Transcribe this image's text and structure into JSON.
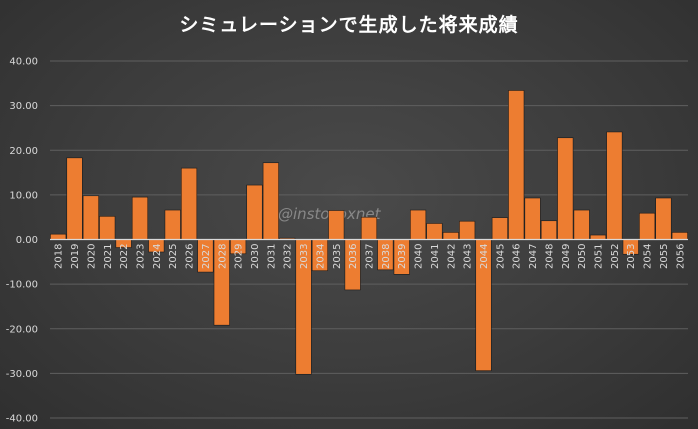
{
  "chart_data": {
    "type": "bar",
    "title": "シミュレーションで生成した将来成績",
    "watermark": "@instocoxnet",
    "categories": [
      "2018",
      "2019",
      "2020",
      "2021",
      "2022",
      "2023",
      "2024",
      "2025",
      "2026",
      "2027",
      "2028",
      "2029",
      "2030",
      "2031",
      "2032",
      "2033",
      "2034",
      "2035",
      "2036",
      "2037",
      "2038",
      "2039",
      "2040",
      "2041",
      "2042",
      "2043",
      "2044",
      "2045",
      "2046",
      "2047",
      "2048",
      "2049",
      "2050",
      "2051",
      "2052",
      "2053",
      "2054",
      "2055",
      "2056"
    ],
    "values": [
      1.2,
      18.3,
      9.8,
      5.2,
      -1.8,
      9.5,
      -2.8,
      6.6,
      16.0,
      -7.3,
      -19.2,
      -3.2,
      12.2,
      17.2,
      0.3,
      -30.2,
      -7.0,
      6.5,
      -11.3,
      5.0,
      -6.8,
      -7.8,
      6.6,
      3.6,
      1.6,
      4.1,
      -29.4,
      4.9,
      33.4,
      9.3,
      4.2,
      22.8,
      6.6,
      1.0,
      24.1,
      -3.3,
      5.9,
      9.3,
      1.6
    ],
    "y_ticks": [
      "40.00",
      "30.00",
      "20.00",
      "10.00",
      "0.00",
      "-10.00",
      "-20.00",
      "-30.00",
      "-40.00"
    ],
    "ylim": [
      -40,
      40
    ],
    "grid": true,
    "legend": "none",
    "colors": {
      "bar": "#ED7D31",
      "bar_edge": "#1a1a1a",
      "grid": "#5f5f5f",
      "axis": "#d9d9d9",
      "text": "#d9d9d9"
    }
  }
}
